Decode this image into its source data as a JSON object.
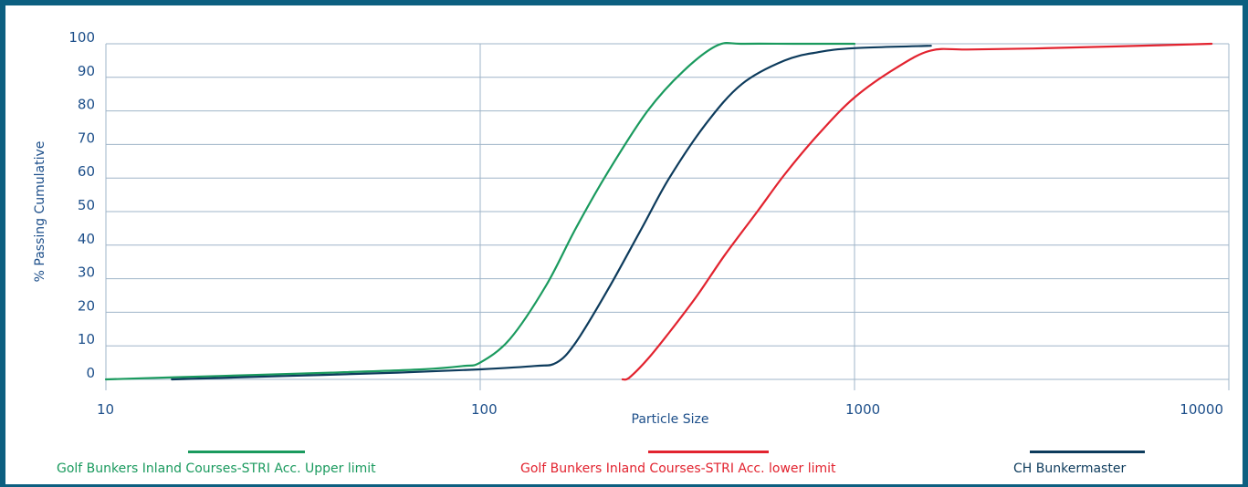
{
  "chart_data": {
    "type": "line",
    "xscale": "log",
    "xlim": [
      10,
      10000
    ],
    "ylim": [
      0,
      100
    ],
    "xlabel": "Particle Size",
    "ylabel": "% Passing Cumulative",
    "xticks": [
      "10",
      "100",
      "1000",
      "10000"
    ],
    "xtick_values": [
      10,
      100,
      1000,
      10000
    ],
    "yticks": [
      "0",
      "10",
      "20",
      "30",
      "40",
      "50",
      "60",
      "70",
      "80",
      "90",
      "100"
    ],
    "ytick_values": [
      0,
      10,
      20,
      30,
      40,
      50,
      60,
      70,
      80,
      90,
      100
    ],
    "grid": true,
    "legend_position": "bottom",
    "series": [
      {
        "name": "Golf Bunkers Inland Courses-STRI Acc. Upper limit",
        "color": "#1a9a5e",
        "x": [
          10,
          20,
          40,
          70,
          90,
          100,
          120,
          150,
          180,
          220,
          280,
          350,
          430,
          500,
          700,
          1000
        ],
        "y": [
          0,
          1,
          2,
          3,
          4,
          5,
          12,
          28,
          45,
          62,
          80,
          92,
          99.5,
          100,
          100,
          100
        ]
      },
      {
        "name": "Golf Bunkers Inland Courses-STRI Acc. lower limit",
        "color": "#e2232f",
        "x": [
          240,
          250,
          280,
          320,
          380,
          450,
          550,
          650,
          800,
          1000,
          1300,
          1600,
          2000,
          3000,
          5000,
          9000
        ],
        "y": [
          0,
          0.5,
          6,
          14,
          25,
          37,
          50,
          61,
          73,
          84,
          93,
          98,
          98.3,
          98.6,
          99.2,
          100
        ]
      },
      {
        "name": "CH Bunkermaster",
        "color": "#0d3b5c",
        "x": [
          15,
          30,
          60,
          100,
          140,
          160,
          180,
          220,
          270,
          320,
          400,
          500,
          650,
          800,
          1000,
          1600
        ],
        "y": [
          0,
          1,
          2,
          3,
          4,
          5,
          11,
          27,
          45,
          60,
          76,
          88,
          95,
          97.5,
          98.7,
          99.4
        ]
      }
    ]
  }
}
